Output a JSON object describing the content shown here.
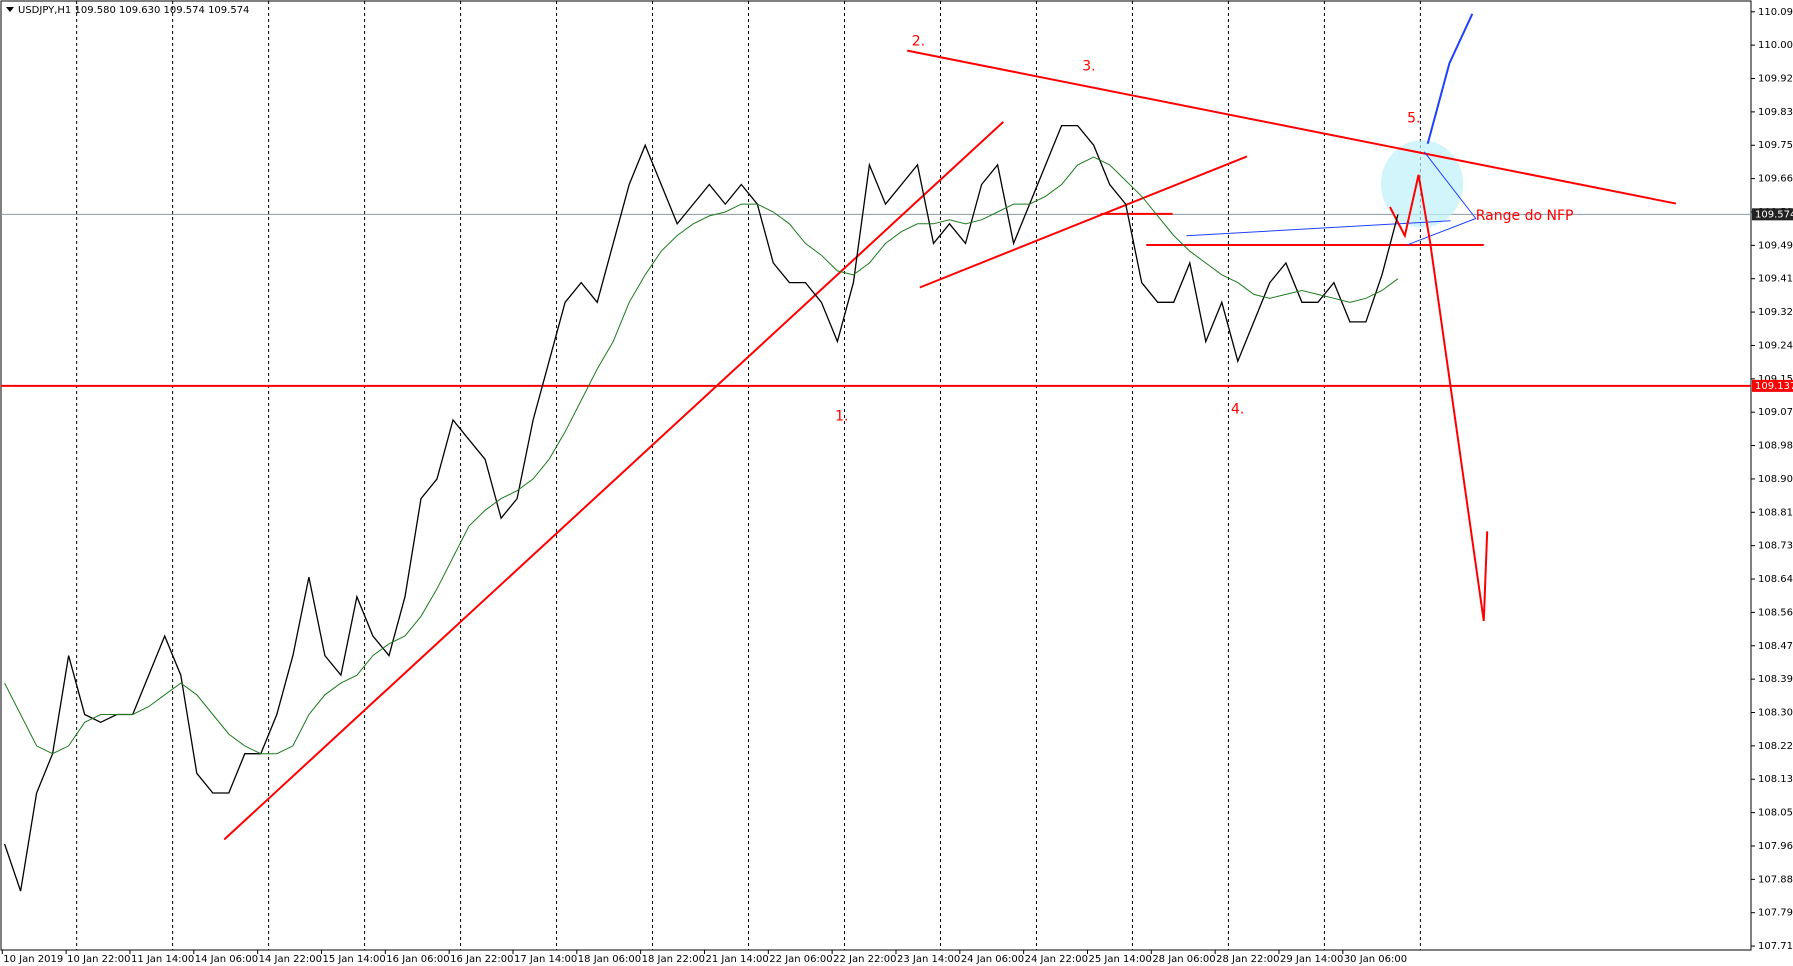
{
  "chart_data": {
    "type": "line",
    "title": "USDJPY,H1  109.580 109.630 109.574 109.574",
    "x_labels": [
      "10 Jan 2019",
      "10 Jan 22:00",
      "11 Jan 14:00",
      "14 Jan 06:00",
      "14 Jan 22:00",
      "15 Jan 14:00",
      "16 Jan 06:00",
      "16 Jan 22:00",
      "17 Jan 14:00",
      "18 Jan 06:00",
      "18 Jan 22:00",
      "21 Jan 14:00",
      "22 Jan 06:00",
      "22 Jan 22:00",
      "23 Jan 14:00",
      "24 Jan 06:00",
      "24 Jan 22:00",
      "25 Jan 14:00",
      "28 Jan 06:00",
      "28 Jan 22:00",
      "29 Jan 14:00",
      "30 Jan 06:00"
    ],
    "series": [
      {
        "color": "#000000",
        "values": [
          107.97,
          107.85,
          108.1,
          108.2,
          108.45,
          108.3,
          108.28,
          108.3,
          108.3,
          108.4,
          108.5,
          108.4,
          108.15,
          108.1,
          108.1,
          108.2,
          108.2,
          108.3,
          108.45,
          108.65,
          108.45,
          108.4,
          108.6,
          108.5,
          108.45,
          108.6,
          108.85,
          108.9,
          109.05,
          109.0,
          108.95,
          108.8,
          108.85,
          109.05,
          109.2,
          109.35,
          109.4,
          109.35,
          109.5,
          109.65,
          109.75,
          109.65,
          109.55,
          109.6,
          109.65,
          109.6,
          109.65,
          109.6,
          109.45,
          109.4,
          109.4,
          109.35,
          109.25,
          109.4,
          109.7,
          109.6,
          109.65,
          109.7,
          109.5,
          109.55,
          109.5,
          109.65,
          109.7,
          109.5,
          109.6,
          109.7,
          109.8,
          109.8,
          109.75,
          109.65,
          109.6,
          109.4,
          109.35,
          109.35,
          109.45,
          109.25,
          109.35,
          109.2,
          109.3,
          109.4,
          109.45,
          109.35,
          109.35,
          109.4,
          109.3,
          109.3,
          109.42,
          109.574
        ]
      },
      {
        "color": "#1f7a1f",
        "values": [
          108.38,
          108.3,
          108.22,
          108.2,
          108.22,
          108.28,
          108.3,
          108.3,
          108.3,
          108.32,
          108.35,
          108.38,
          108.35,
          108.3,
          108.25,
          108.22,
          108.2,
          108.2,
          108.22,
          108.3,
          108.35,
          108.38,
          108.4,
          108.45,
          108.48,
          108.5,
          108.55,
          108.62,
          108.7,
          108.78,
          108.82,
          108.85,
          108.87,
          108.9,
          108.95,
          109.02,
          109.1,
          109.18,
          109.25,
          109.35,
          109.42,
          109.48,
          109.52,
          109.55,
          109.57,
          109.58,
          109.6,
          109.6,
          109.58,
          109.55,
          109.5,
          109.47,
          109.43,
          109.42,
          109.45,
          109.5,
          109.53,
          109.55,
          109.55,
          109.56,
          109.55,
          109.56,
          109.58,
          109.6,
          109.6,
          109.62,
          109.65,
          109.7,
          109.72,
          109.7,
          109.66,
          109.62,
          109.57,
          109.52,
          109.48,
          109.45,
          109.42,
          109.4,
          109.37,
          109.36,
          109.37,
          109.38,
          109.37,
          109.36,
          109.35,
          109.36,
          109.38,
          109.41
        ]
      }
    ],
    "ylim": [
      107.7,
      110.12
    ],
    "yticks": [
      {
        "value": 110.09,
        "label": "110.090"
      },
      110.005,
      {
        "value": 109.92,
        "label": "109.920"
      },
      109.835,
      {
        "value": 109.75,
        "label": "109.750"
      },
      109.665,
      {
        "value": 109.58,
        "label": "109.580"
      },
      109.495,
      {
        "value": 109.41,
        "label": "109.410"
      },
      109.325,
      {
        "value": 109.24,
        "label": "109.240"
      },
      109.155,
      {
        "value": 109.07,
        "label": "109.070"
      },
      108.985,
      {
        "value": 108.9,
        "label": "108.900"
      },
      108.815,
      {
        "value": 108.73,
        "label": "108.730"
      },
      108.645,
      {
        "value": 108.56,
        "label": "108.560"
      },
      108.475,
      {
        "value": 108.39,
        "label": "108.390"
      },
      108.305,
      {
        "value": 108.22,
        "label": "108.220"
      },
      108.135,
      {
        "value": 108.05,
        "label": "108.050"
      },
      107.965,
      {
        "value": 107.88,
        "label": "107.880"
      },
      107.795,
      {
        "value": 107.71,
        "label": "107.710"
      }
    ],
    "current_price": 109.574,
    "line_price": 109.137,
    "annotations": [
      "1.",
      "2.",
      "3.",
      "4.",
      "5.",
      "Range do NFP"
    ]
  }
}
